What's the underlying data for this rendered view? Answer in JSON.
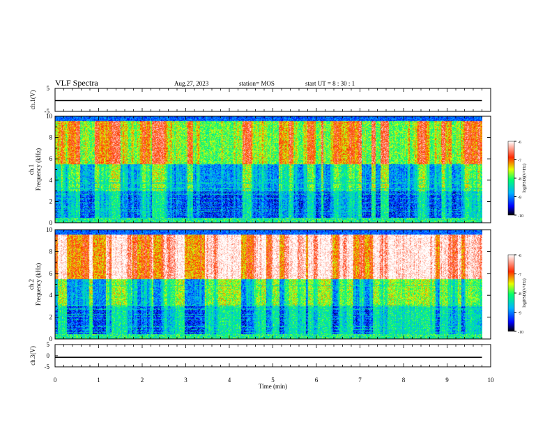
{
  "header": {
    "title": "VLF Spectra",
    "date": "Aug.27, 2023",
    "station": "station= MOS",
    "start": "start  UT =   8 : 30 : 1"
  },
  "chart_data": [
    {
      "type": "line",
      "panel": "ch1-voltage",
      "ylabel": "ch.1(V)",
      "yticks": [
        "5",
        "-5"
      ],
      "ylim": [
        -5,
        5
      ],
      "xlim": [
        0,
        10
      ],
      "series": [
        {
          "x": [
            0,
            9.8
          ],
          "values": [
            -0.3,
            -0.3
          ]
        }
      ]
    },
    {
      "type": "heatmap",
      "panel": "ch1-spectrogram",
      "ylabel_channel": "ch.1",
      "ylabel": "Frequency (kHz)",
      "yticks": [
        "0",
        "2",
        "4",
        "6",
        "8",
        "10"
      ],
      "ylim": [
        0,
        10
      ],
      "xlim": [
        0,
        9.8
      ],
      "colorbar": {
        "label": "log(PSD)(V²/Hz)",
        "ticks": [
          "-6",
          "-7",
          "-8",
          "-9",
          "-10"
        ],
        "range": [
          -10,
          -6
        ]
      }
    },
    {
      "type": "heatmap",
      "panel": "ch2-spectrogram",
      "ylabel_channel": "ch.2",
      "ylabel": "Frequency (kHz)",
      "yticks": [
        "0",
        "2",
        "4",
        "6",
        "8",
        "10"
      ],
      "ylim": [
        0,
        10
      ],
      "xlim": [
        0,
        9.8
      ],
      "colorbar": {
        "label": "log(PSD)(V²/Hz)",
        "ticks": [
          "-6",
          "-7",
          "-8",
          "-9",
          "-10"
        ],
        "range": [
          -10,
          -6
        ]
      }
    },
    {
      "type": "line",
      "panel": "ch3-voltage",
      "ylabel": "ch.3(V)",
      "yticks": [
        "5",
        "0",
        "-5"
      ],
      "ylim": [
        -5,
        5
      ],
      "xlim": [
        0,
        10
      ],
      "series": [
        {
          "x": [
            0,
            9.8
          ],
          "values": [
            -0.7,
            -0.7
          ]
        }
      ]
    }
  ],
  "xaxis": {
    "label": "Time (min)",
    "ticks": [
      "0",
      "1",
      "2",
      "3",
      "4",
      "5",
      "6",
      "7",
      "8",
      "9",
      "10"
    ],
    "range": [
      0,
      10
    ]
  },
  "colors": {
    "colormap": [
      "#00007a",
      "#0000ff",
      "#00b4ff",
      "#00ff6e",
      "#e6ff00",
      "#ff2a00",
      "#ffffff"
    ]
  }
}
